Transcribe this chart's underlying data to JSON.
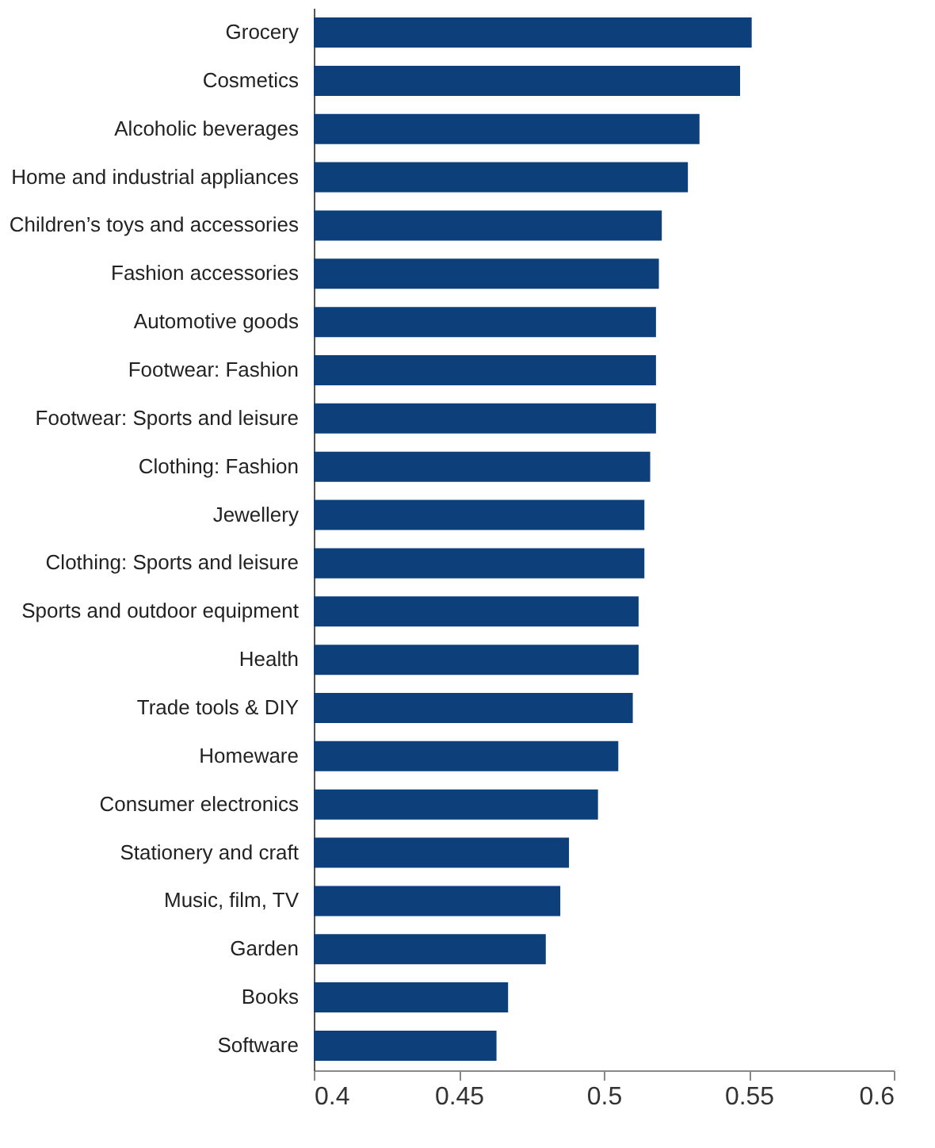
{
  "chart_data": {
    "type": "bar",
    "orientation": "horizontal",
    "categories": [
      "Grocery",
      "Cosmetics",
      "Alcoholic beverages",
      "Home and industrial appliances",
      "Children’s toys and accessories",
      "Fashion accessories",
      "Automotive goods",
      "Footwear: Fashion",
      "Footwear: Sports and leisure",
      "Clothing: Fashion",
      "Jewellery",
      "Clothing: Sports and leisure",
      "Sports and outdoor equipment",
      "Health",
      "Trade tools & DIY",
      "Homeware",
      "Consumer electronics",
      "Stationery and craft",
      "Music, film, TV",
      "Garden",
      "Books",
      "Software"
    ],
    "values": [
      0.551,
      0.547,
      0.533,
      0.529,
      0.52,
      0.519,
      0.518,
      0.518,
      0.518,
      0.516,
      0.514,
      0.514,
      0.512,
      0.512,
      0.51,
      0.505,
      0.498,
      0.488,
      0.485,
      0.48,
      0.467,
      0.463
    ],
    "color": "#0d3f7a",
    "xlim": [
      0.4,
      0.6
    ],
    "xticks": [
      0.4,
      0.45,
      0.5,
      0.55,
      0.6
    ],
    "grid": false
  }
}
